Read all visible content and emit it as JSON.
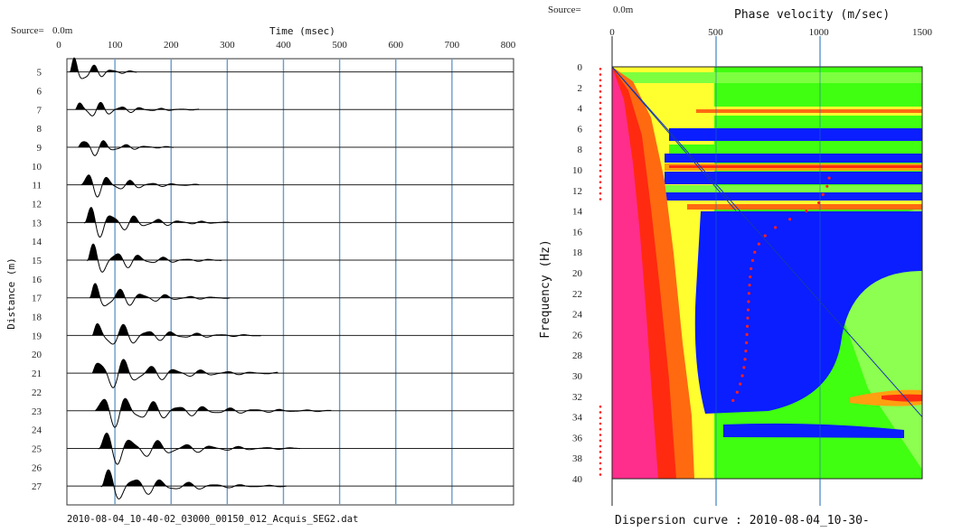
{
  "chart_data": [
    {
      "type": "line",
      "panel": "seismogram",
      "source_label": "Source=",
      "source_value": "0.0m",
      "xlabel": "Time (msec)",
      "ylabel": "Distance (m)",
      "xlim": [
        0,
        800
      ],
      "x_ticks": [
        "0",
        "100",
        "200",
        "300",
        "400",
        "500",
        "600",
        "700",
        "800"
      ],
      "y_ticks": [
        "5",
        "6",
        "7",
        "8",
        "9",
        "10",
        "11",
        "12",
        "13",
        "14",
        "15",
        "16",
        "17",
        "18",
        "19",
        "20",
        "21",
        "22",
        "23",
        "24",
        "25",
        "26",
        "27"
      ],
      "ylim": [
        4.3,
        28
      ],
      "gridline_times": [
        100,
        200,
        300,
        400,
        500,
        600,
        700
      ],
      "traces": [
        {
          "distance": 5,
          "arrival": 20,
          "amp": 1.0,
          "duration": 120,
          "freq": 30
        },
        {
          "distance": 7,
          "arrival": 30,
          "amp": 0.55,
          "duration": 220,
          "freq": 28
        },
        {
          "distance": 9,
          "arrival": 35,
          "amp": 0.65,
          "duration": 170,
          "freq": 27
        },
        {
          "distance": 11,
          "arrival": 40,
          "amp": 0.75,
          "duration": 210,
          "freq": 26
        },
        {
          "distance": 13,
          "arrival": 45,
          "amp": 0.85,
          "duration": 260,
          "freq": 25
        },
        {
          "distance": 15,
          "arrival": 50,
          "amp": 0.85,
          "duration": 240,
          "freq": 24
        },
        {
          "distance": 17,
          "arrival": 55,
          "amp": 0.8,
          "duration": 250,
          "freq": 24
        },
        {
          "distance": 19,
          "arrival": 60,
          "amp": 0.8,
          "duration": 300,
          "freq": 23
        },
        {
          "distance": 21,
          "arrival": 60,
          "amp": 0.95,
          "duration": 330,
          "freq": 22
        },
        {
          "distance": 23,
          "arrival": 65,
          "amp": 0.85,
          "duration": 420,
          "freq": 22
        },
        {
          "distance": 25,
          "arrival": 70,
          "amp": 0.85,
          "duration": 360,
          "freq": 21
        },
        {
          "distance": 27,
          "arrival": 75,
          "amp": 0.8,
          "duration": 330,
          "freq": 21
        }
      ],
      "footer": "2010-08-04_10-40-02_03000_00150_012_Acquis_SEG2.dat"
    },
    {
      "type": "heatmap",
      "panel": "dispersion",
      "source_label": "Source=",
      "source_value": "0.0m",
      "xlabel": "Phase velocity (m/sec)",
      "ylabel": "Frequency (Hz)",
      "xlim": [
        0,
        1500
      ],
      "ylim": [
        0,
        40
      ],
      "x_ticks": [
        "0",
        "500",
        "1000",
        "1500"
      ],
      "y_ticks": [
        "0",
        "2",
        "4",
        "6",
        "8",
        "10",
        "12",
        "14",
        "16",
        "18",
        "20",
        "22",
        "24",
        "26",
        "28",
        "30",
        "32",
        "34",
        "36",
        "38",
        "40"
      ],
      "colors": {
        "magenta": "#ff2d8c",
        "red": "#ff2a10",
        "orange": "#ffa010",
        "yellow": "#ffff30",
        "green": "#40ff10",
        "light_green": "#90ff50",
        "blue": "#0a1eff"
      },
      "dispersion_curve": [
        {
          "f": 10.8,
          "v": 1050
        },
        {
          "f": 11.6,
          "v": 1040
        },
        {
          "f": 12.4,
          "v": 1020
        },
        {
          "f": 13.2,
          "v": 1000
        },
        {
          "f": 14.0,
          "v": 940
        },
        {
          "f": 14.8,
          "v": 860
        },
        {
          "f": 15.6,
          "v": 790
        },
        {
          "f": 16.4,
          "v": 740
        },
        {
          "f": 17.2,
          "v": 710
        },
        {
          "f": 18.0,
          "v": 690
        },
        {
          "f": 18.8,
          "v": 680
        },
        {
          "f": 19.6,
          "v": 672
        },
        {
          "f": 20.4,
          "v": 668
        },
        {
          "f": 21.2,
          "v": 665
        },
        {
          "f": 22.0,
          "v": 662
        },
        {
          "f": 22.8,
          "v": 660
        },
        {
          "f": 23.6,
          "v": 658
        },
        {
          "f": 24.4,
          "v": 656
        },
        {
          "f": 25.2,
          "v": 654
        },
        {
          "f": 26.0,
          "v": 652
        },
        {
          "f": 26.8,
          "v": 650
        },
        {
          "f": 27.6,
          "v": 647
        },
        {
          "f": 28.4,
          "v": 643
        },
        {
          "f": 29.2,
          "v": 638
        },
        {
          "f": 30.0,
          "v": 630
        },
        {
          "f": 30.8,
          "v": 620
        },
        {
          "f": 31.6,
          "v": 605
        },
        {
          "f": 32.4,
          "v": 585
        }
      ],
      "aliasing_lines": [
        {
          "from": [
            0,
            0
          ],
          "to": [
            600,
            14
          ]
        },
        {
          "from": [
            0,
            0
          ],
          "to": [
            1500,
            34
          ]
        }
      ],
      "footer": "Dispersion curve : 2010-08-04_10-30-"
    }
  ]
}
